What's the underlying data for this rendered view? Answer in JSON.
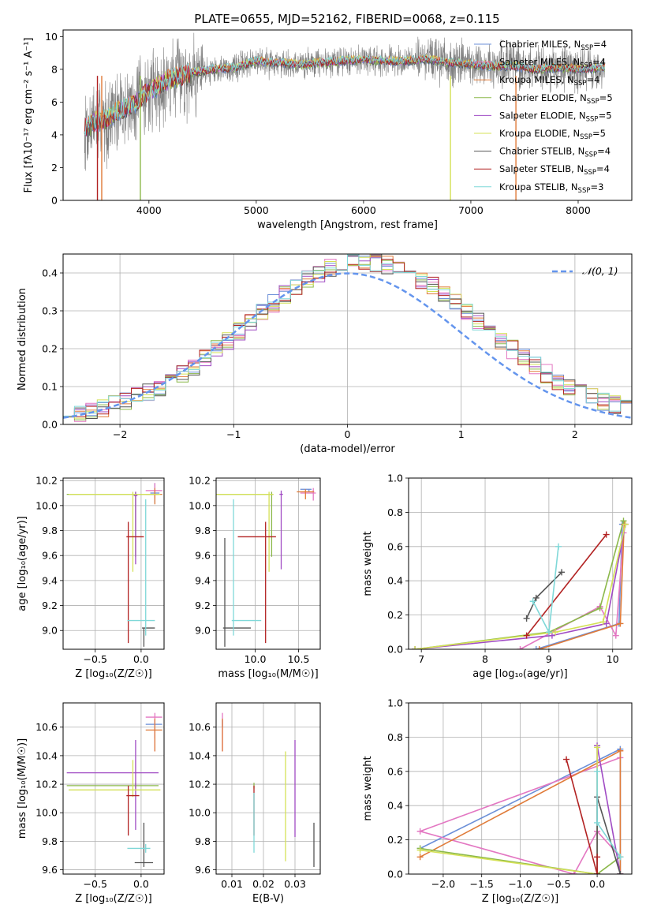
{
  "title": "PLATE=0655, MJD=52162, FIBERID=0068, z=0.115",
  "colors": [
    "#6b8fd8",
    "#e377c2",
    "#e07b39",
    "#8bb84a",
    "#a04bc4",
    "#d4e157",
    "#555555",
    "#b22222",
    "#7fd8d8"
  ],
  "chart_data": [
    {
      "id": "spectrum",
      "type": "line",
      "xlabel": "wavelength [Angstrom, rest frame]",
      "ylabel": "Flux [fλ10⁻¹⁷ erg cm⁻² s⁻¹ A⁻¹]",
      "xlim": [
        3200,
        8500
      ],
      "ylim": [
        0,
        10.4
      ],
      "xticks": [
        4000,
        5000,
        6000,
        7000,
        8000
      ],
      "yticks": [
        0,
        2,
        4,
        6,
        8,
        10
      ],
      "grid": false,
      "legend_position": "upper-right",
      "data_color": "#808080",
      "model_anchor_x": [
        3400,
        3500,
        3600,
        3700,
        3800,
        3900,
        4000,
        4100,
        4200,
        4300,
        4400,
        4600,
        4800,
        5000,
        5200,
        5400,
        5600,
        5800,
        6000,
        6200,
        6400,
        6600,
        6800,
        7000,
        7200,
        7400,
        7600,
        7800,
        8000,
        8250
      ],
      "model_anchor_y": [
        4.4,
        4.8,
        4.9,
        5.4,
        5.7,
        6.1,
        6.7,
        7.0,
        7.4,
        7.6,
        7.8,
        8.0,
        8.1,
        8.5,
        8.4,
        8.3,
        8.4,
        8.5,
        8.6,
        8.5,
        8.5,
        8.6,
        8.4,
        8.3,
        8.2,
        8.2,
        8.0,
        8.1,
        8.0,
        8.1
      ],
      "series": [
        {
          "label": "Chabrier MILES, N",
          "sub": "SSP",
          "suffix": "=4"
        },
        {
          "label": "Salpeter MILES, N",
          "sub": "SSP",
          "suffix": "=4"
        },
        {
          "label": "Kroupa MILES, N",
          "sub": "SSP",
          "suffix": "=4"
        },
        {
          "label": "Chabrier ELODIE, N",
          "sub": "SSP",
          "suffix": "=5"
        },
        {
          "label": "Salpeter ELODIE, N",
          "sub": "SSP",
          "suffix": "=5"
        },
        {
          "label": "Kroupa ELODIE, N",
          "sub": "SSP",
          "suffix": "=5"
        },
        {
          "label": "Chabrier STELIB, N",
          "sub": "SSP",
          "suffix": "=4"
        },
        {
          "label": "Salpeter STELIB, N",
          "sub": "SSP",
          "suffix": "=4"
        },
        {
          "label": "Kroupa STELIB, N",
          "sub": "SSP",
          "suffix": "=3"
        }
      ]
    },
    {
      "id": "residuals",
      "type": "step-histogram",
      "xlabel": "(data-model)/error",
      "ylabel": "Normed distribution",
      "xlim": [
        -2.5,
        2.5
      ],
      "ylim": [
        0,
        0.45
      ],
      "xticks": [
        -2,
        -1,
        0,
        1,
        2
      ],
      "yticks": [
        0.0,
        0.1,
        0.2,
        0.3,
        0.4
      ],
      "grid": true,
      "legend": "𝒩(0, 1)",
      "legend_position": "upper-right",
      "bin_width": 0.1,
      "reference_curve": "normal",
      "reference_color": "#6495ed"
    },
    {
      "id": "age-vs-Z",
      "type": "errorbar",
      "xlabel": "Z [log₁₀(Z/Z☉)]",
      "ylabel": "age  [log₁₀(age/yr)]",
      "xlim": [
        -0.85,
        0.25
      ],
      "ylim": [
        8.85,
        10.22
      ],
      "xticks": [
        -0.5,
        0.0
      ],
      "yticks": [
        9.0,
        9.2,
        9.4,
        9.6,
        9.8,
        10.0,
        10.2
      ],
      "grid": true,
      "points": [
        {
          "x": 0.15,
          "y": 10.1,
          "xerr": [
            0.05,
            0.05
          ],
          "yerr": [
            0.08,
            0.08
          ]
        },
        {
          "x": 0.15,
          "y": 10.12,
          "xerr": [
            0.1,
            0.08
          ],
          "yerr": [
            0.06,
            0.06
          ]
        },
        {
          "x": 0.15,
          "y": 10.09,
          "xerr": [
            0.1,
            0.08
          ],
          "yerr": [
            0.08,
            0.05
          ]
        },
        {
          "x": -0.06,
          "y": 10.09,
          "xerr": [
            0.75,
            0.25
          ],
          "yerr": [
            0.5,
            0.02
          ]
        },
        {
          "x": -0.06,
          "y": 10.08,
          "xerr": [
            0.02,
            0.02
          ],
          "yerr": [
            0.55,
            0.03
          ]
        },
        {
          "x": -0.09,
          "y": 10.09,
          "xerr": [
            0.7,
            0.3
          ],
          "yerr": [
            0.62,
            0.02
          ]
        },
        {
          "x": 0.03,
          "y": 9.02,
          "xerr": [
            0.02,
            0.12
          ],
          "yerr": [
            0.15,
            0.0
          ]
        },
        {
          "x": -0.14,
          "y": 9.75,
          "xerr": [
            0.02,
            0.17
          ],
          "yerr": [
            0.85,
            0.12
          ]
        },
        {
          "x": 0.05,
          "y": 9.08,
          "xerr": [
            0.2,
            0.1
          ],
          "yerr": [
            0.12,
            0.97
          ]
        }
      ]
    },
    {
      "id": "age-vs-mass",
      "type": "errorbar",
      "xlabel": "mass [log₁₀(M/M☉)]",
      "ylabel": "",
      "xlim": [
        9.55,
        10.75
      ],
      "ylim": [
        8.85,
        10.22
      ],
      "xticks": [
        10.0,
        10.5
      ],
      "yticks": [
        9.0,
        9.2,
        9.4,
        9.6,
        9.8,
        10.0,
        10.2
      ],
      "grid": true,
      "points": [
        {
          "x": 10.62,
          "y": 10.13,
          "xerr": [
            0.1,
            0.03
          ],
          "yerr": [
            0.02,
            0.0
          ]
        },
        {
          "x": 10.67,
          "y": 10.1,
          "xerr": [
            0.15,
            0.03
          ],
          "yerr": [
            0.06,
            0.04
          ]
        },
        {
          "x": 10.58,
          "y": 10.11,
          "xerr": [
            0.1,
            0.1
          ],
          "yerr": [
            0.06,
            0.02
          ]
        },
        {
          "x": 10.19,
          "y": 10.09,
          "xerr": [
            0.9,
            0.02
          ],
          "yerr": [
            0.5,
            0.02
          ]
        },
        {
          "x": 10.3,
          "y": 10.09,
          "xerr": [
            0.02,
            0.02
          ],
          "yerr": [
            0.6,
            0.03
          ]
        },
        {
          "x": 10.16,
          "y": 10.09,
          "xerr": [
            0.82,
            0.05
          ],
          "yerr": [
            0.62,
            0.02
          ]
        },
        {
          "x": 9.65,
          "y": 9.02,
          "xerr": [
            0.02,
            0.3
          ],
          "yerr": [
            0.15,
            0.72
          ]
        },
        {
          "x": 10.12,
          "y": 9.75,
          "xerr": [
            0.32,
            0.12
          ],
          "yerr": [
            0.85,
            0.12
          ]
        },
        {
          "x": 9.75,
          "y": 9.08,
          "xerr": [
            0.02,
            0.32
          ],
          "yerr": [
            0.12,
            0.97
          ]
        }
      ]
    },
    {
      "id": "weight-vs-age",
      "type": "line",
      "xlabel": "age  [log₁₀(age/yr)]",
      "ylabel": "mass weight",
      "xlim": [
        6.8,
        10.3
      ],
      "ylim": [
        0,
        1
      ],
      "xticks": [
        7,
        8,
        9,
        10
      ],
      "yticks": [
        0.0,
        0.2,
        0.4,
        0.6,
        0.8,
        1.0
      ],
      "grid": true,
      "series": [
        {
          "x": [
            8.8,
            10.1,
            10.15
          ],
          "y": [
            0.0,
            0.15,
            0.73
          ]
        },
        {
          "x": [
            8.55,
            9.8,
            10.05,
            10.17
          ],
          "y": [
            0.0,
            0.25,
            0.08,
            0.68
          ]
        },
        {
          "x": [
            8.85,
            10.12,
            10.18
          ],
          "y": [
            0.0,
            0.15,
            0.73
          ]
        },
        {
          "x": [
            6.9,
            9.0,
            9.8,
            10.17
          ],
          "y": [
            0.0,
            0.1,
            0.24,
            0.75
          ]
        },
        {
          "x": [
            6.9,
            9.05,
            9.9,
            10.2
          ],
          "y": [
            0.0,
            0.08,
            0.15,
            0.73
          ]
        },
        {
          "x": [
            6.9,
            9.1,
            9.85,
            10.2
          ],
          "y": [
            0.0,
            0.1,
            0.16,
            0.73
          ]
        },
        {
          "x": [
            8.65,
            8.8,
            9.2
          ],
          "y": [
            0.18,
            0.3,
            0.45
          ]
        },
        {
          "x": [
            8.65,
            9.9
          ],
          "y": [
            0.08,
            0.67
          ]
        },
        {
          "x": [
            8.75,
            9.0,
            9.15
          ],
          "y": [
            0.28,
            0.1,
            0.6
          ]
        }
      ]
    },
    {
      "id": "mass-vs-Z",
      "type": "errorbar",
      "xlabel": "Z [log₁₀(Z/Z☉)]",
      "ylabel": "mass [log₁₀(M/M☉)]",
      "xlim": [
        -0.85,
        0.25
      ],
      "ylim": [
        9.57,
        10.77
      ],
      "xticks": [
        -0.5,
        0.0
      ],
      "yticks": [
        9.6,
        9.8,
        10.0,
        10.2,
        10.4,
        10.6
      ],
      "grid": true,
      "points": [
        {
          "x": 0.15,
          "y": 10.62,
          "xerr": [
            0.1,
            0.08
          ],
          "yerr": [
            0.1,
            0.03
          ]
        },
        {
          "x": 0.15,
          "y": 10.67,
          "xerr": [
            0.1,
            0.08
          ],
          "yerr": [
            0.24,
            0.03
          ]
        },
        {
          "x": 0.15,
          "y": 10.58,
          "xerr": [
            0.1,
            0.08
          ],
          "yerr": [
            0.15,
            0.08
          ]
        },
        {
          "x": -0.06,
          "y": 10.19,
          "xerr": [
            0.75,
            0.25
          ],
          "yerr": [
            0.02,
            0.02
          ]
        },
        {
          "x": -0.06,
          "y": 10.28,
          "xerr": [
            0.75,
            0.25
          ],
          "yerr": [
            0.4,
            0.23
          ]
        },
        {
          "x": -0.09,
          "y": 10.16,
          "xerr": [
            0.7,
            0.3
          ],
          "yerr": [
            0.05,
            0.21
          ]
        },
        {
          "x": 0.03,
          "y": 9.65,
          "xerr": [
            0.1,
            0.1
          ],
          "yerr": [
            0.03,
            0.28
          ]
        },
        {
          "x": -0.14,
          "y": 10.12,
          "xerr": [
            0.02,
            0.12
          ],
          "yerr": [
            0.28,
            0.07
          ]
        },
        {
          "x": 0.05,
          "y": 9.75,
          "xerr": [
            0.2,
            0.05
          ],
          "yerr": [
            0.03,
            0.03
          ]
        }
      ]
    },
    {
      "id": "mass-vs-EBV",
      "type": "errorbar",
      "xlabel": "E(B-V)",
      "ylabel": "",
      "xlim": [
        0.005,
        0.038
      ],
      "ylim": [
        9.57,
        10.77
      ],
      "xticks": [
        0.01,
        0.02,
        0.03
      ],
      "yticks": [
        9.6,
        9.8,
        10.0,
        10.2,
        10.4,
        10.6
      ],
      "grid": true,
      "points": [
        {
          "x": 0.007,
          "y": 10.62,
          "xerr": [
            0.0,
            0.0
          ],
          "yerr": [
            0.02,
            0.03
          ]
        },
        {
          "x": 0.007,
          "y": 10.67,
          "xerr": [
            0.0,
            0.0
          ],
          "yerr": [
            0.24,
            0.03
          ]
        },
        {
          "x": 0.007,
          "y": 10.58,
          "xerr": [
            0.0,
            0.0
          ],
          "yerr": [
            0.15,
            0.08
          ]
        },
        {
          "x": 0.017,
          "y": 10.19,
          "xerr": [
            0.0,
            0.0
          ],
          "yerr": [
            0.02,
            0.02
          ]
        },
        {
          "x": 0.03,
          "y": 10.28,
          "xerr": [
            0.0,
            0.0
          ],
          "yerr": [
            0.45,
            0.23
          ]
        },
        {
          "x": 0.027,
          "y": 10.16,
          "xerr": [
            0.0,
            0.0
          ],
          "yerr": [
            0.5,
            0.27
          ]
        },
        {
          "x": 0.036,
          "y": 9.65,
          "xerr": [
            0.0,
            0.0
          ],
          "yerr": [
            0.03,
            0.28
          ]
        },
        {
          "x": 0.017,
          "y": 10.12,
          "xerr": [
            0.0,
            0.0
          ],
          "yerr": [
            0.28,
            0.07
          ]
        },
        {
          "x": 0.017,
          "y": 9.75,
          "xerr": [
            0.0,
            0.0
          ],
          "yerr": [
            0.03,
            0.39
          ]
        }
      ]
    },
    {
      "id": "weight-vs-Z",
      "type": "line",
      "xlabel": "Z [log₁₀(Z/Z☉)]",
      "ylabel": "mass weight",
      "xlim": [
        -2.45,
        0.45
      ],
      "ylim": [
        0,
        1
      ],
      "xticks": [
        -2.0,
        -1.5,
        -1.0,
        -0.5,
        0.0
      ],
      "yticks": [
        0.0,
        0.2,
        0.4,
        0.6,
        0.8,
        1.0
      ],
      "grid": true,
      "series": [
        {
          "x": [
            0.3,
            0.3,
            -2.3
          ],
          "y": [
            0.0,
            0.73,
            0.15
          ]
        },
        {
          "x": [
            0.3,
            -2.3,
            -0.3,
            0.0,
            0.3
          ],
          "y": [
            0.68,
            0.25,
            0.0,
            0.25,
            0.1
          ]
        },
        {
          "x": [
            -2.3,
            0.3,
            0.3
          ],
          "y": [
            0.1,
            0.72,
            0.0
          ]
        },
        {
          "x": [
            -2.3,
            0.0,
            0.3
          ],
          "y": [
            0.15,
            0.0,
            0.1
          ]
        },
        {
          "x": [
            0.0,
            0.0,
            0.3
          ],
          "y": [
            0.0,
            0.75,
            0.0
          ]
        },
        {
          "x": [
            -2.3,
            0.0,
            0.0
          ],
          "y": [
            0.14,
            0.0,
            0.74
          ]
        },
        {
          "x": [
            0.0,
            0.0,
            0.3
          ],
          "y": [
            0.0,
            0.45,
            0.0
          ]
        },
        {
          "x": [
            -0.4,
            0.0,
            0.0
          ],
          "y": [
            0.67,
            0.0,
            0.1
          ]
        },
        {
          "x": [
            0.0,
            0.0,
            0.3
          ],
          "y": [
            0.6,
            0.3,
            0.1
          ]
        }
      ]
    }
  ]
}
